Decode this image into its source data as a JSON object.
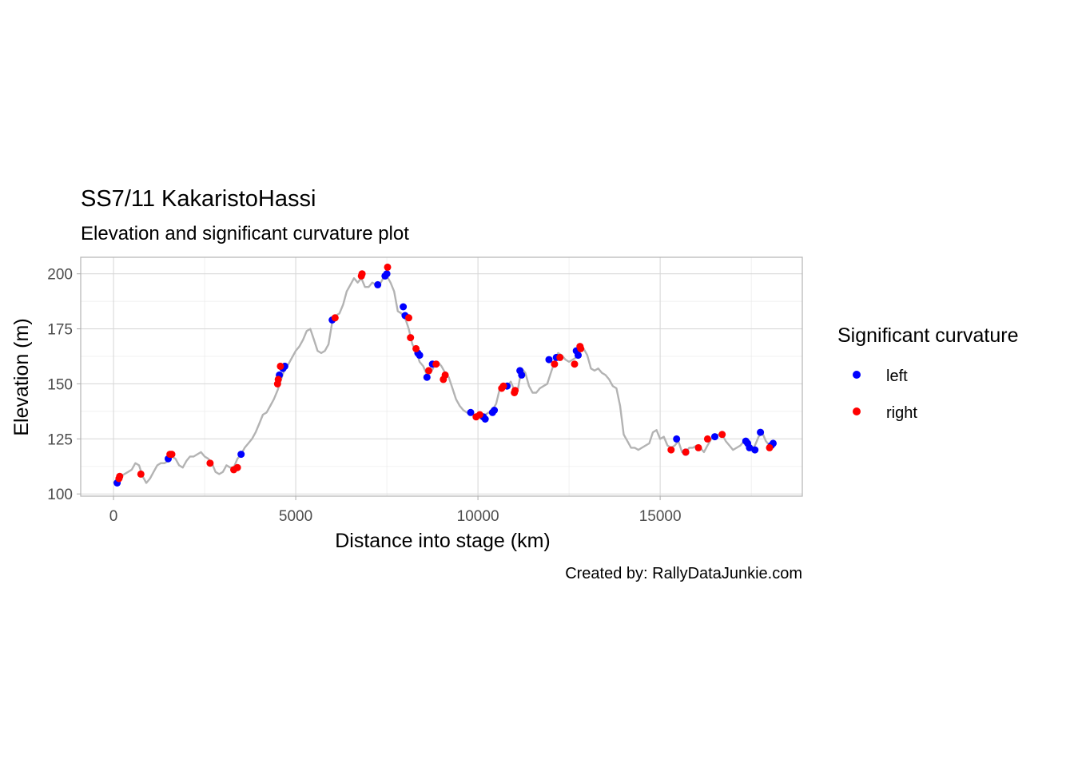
{
  "chart_data": {
    "type": "line",
    "title": "SS7/11 KakaristoHassi",
    "subtitle": "Elevation and significant curvature plot",
    "xlabel": "Distance into stage (km)",
    "ylabel": "Elevation (m)",
    "caption": "Created by: RallyDataJunkie.com",
    "xlim": [
      -900,
      18900
    ],
    "ylim": [
      99,
      207.5
    ],
    "x_ticks": [
      0,
      5000,
      10000,
      15000
    ],
    "y_ticks": [
      100,
      125,
      150,
      175,
      200
    ],
    "grid": true,
    "legend": {
      "title": "Significant curvature",
      "position": "right"
    },
    "elevation_profile": {
      "color": "#b3b3b3",
      "x": [
        0,
        100,
        200,
        300,
        400,
        500,
        600,
        700,
        800,
        900,
        1000,
        1100,
        1200,
        1300,
        1400,
        1500,
        1600,
        1700,
        1800,
        1900,
        2000,
        2100,
        2200,
        2300,
        2400,
        2500,
        2600,
        2700,
        2800,
        2900,
        3000,
        3100,
        3200,
        3300,
        3400,
        3500,
        3600,
        3700,
        3800,
        3900,
        4000,
        4100,
        4200,
        4300,
        4400,
        4500,
        4600,
        4700,
        4800,
        4900,
        5000,
        5100,
        5200,
        5300,
        5400,
        5500,
        5600,
        5700,
        5800,
        5900,
        6000,
        6100,
        6200,
        6300,
        6400,
        6500,
        6600,
        6700,
        6800,
        6900,
        7000,
        7100,
        7200,
        7300,
        7400,
        7500,
        7600,
        7700,
        7800,
        7900,
        8000,
        8100,
        8200,
        8300,
        8400,
        8500,
        8600,
        8700,
        8800,
        8900,
        9000,
        9100,
        9200,
        9300,
        9400,
        9500,
        9600,
        9700,
        9800,
        9900,
        10000,
        10100,
        10200,
        10300,
        10400,
        10500,
        10600,
        10700,
        10800,
        10900,
        11000,
        11100,
        11200,
        11300,
        11400,
        11500,
        11600,
        11700,
        11800,
        11900,
        12000,
        12100,
        12200,
        12300,
        12400,
        12500,
        12600,
        12700,
        12800,
        12900,
        13000,
        13100,
        13200,
        13300,
        13400,
        13500,
        13600,
        13700,
        13800,
        13900,
        14000,
        14100,
        14200,
        14300,
        14400,
        14500,
        14600,
        14700,
        14800,
        14900,
        15000,
        15100,
        15200,
        15300,
        15400,
        15500,
        15600,
        15700,
        15800,
        15900,
        16000,
        16100,
        16200,
        16300,
        16400,
        16500,
        16600,
        16700,
        16800,
        16900,
        17000,
        17100,
        17200,
        17300,
        17400,
        17500,
        17600,
        17700,
        17800,
        17900,
        18000,
        18100
      ],
      "y": [
        105,
        107,
        108,
        109,
        110,
        111,
        114,
        113,
        108,
        105,
        107,
        110,
        113,
        114,
        114,
        115,
        117,
        116,
        113,
        112,
        115,
        117,
        117,
        118,
        119,
        117,
        116,
        114,
        110,
        109,
        110,
        113,
        112,
        112,
        116,
        118,
        121,
        123,
        125,
        128,
        132,
        136,
        137,
        140,
        143,
        147,
        152,
        157,
        159,
        162,
        165,
        167,
        170,
        174,
        175,
        170,
        165,
        164,
        165,
        168,
        178,
        181,
        182,
        186,
        192,
        195,
        198,
        196,
        198,
        194,
        194,
        196,
        195,
        195,
        198,
        199,
        196,
        192,
        183,
        182,
        180,
        175,
        168,
        165,
        160,
        158,
        154,
        155,
        158,
        160,
        158,
        155,
        153,
        148,
        143,
        140,
        138,
        137,
        136,
        136,
        135,
        134,
        136,
        137,
        138,
        141,
        148,
        149,
        149,
        151,
        147,
        148,
        157,
        155,
        149,
        146,
        146,
        148,
        149,
        150,
        155,
        160,
        164,
        163,
        161,
        160,
        161,
        162,
        165,
        166,
        163,
        157,
        156,
        157,
        155,
        154,
        152,
        149,
        148,
        140,
        127,
        124,
        121,
        121,
        120,
        121,
        122,
        123,
        128,
        129,
        125,
        126,
        122,
        121,
        122,
        124,
        119,
        119,
        121,
        121,
        122,
        121,
        119,
        122,
        125,
        126,
        127,
        127,
        124,
        122,
        120,
        121,
        122,
        124,
        123,
        120,
        122,
        126,
        128,
        124,
        122,
        122
      ]
    },
    "series": [
      {
        "name": "left",
        "color": "#0000ff",
        "x": [
          100,
          1500,
          3500,
          4550,
          4650,
          4700,
          6000,
          7250,
          7450,
          7500,
          7950,
          8000,
          8350,
          8400,
          8600,
          8750,
          9800,
          10150,
          10200,
          10400,
          10450,
          10800,
          11150,
          11200,
          11950,
          12150,
          12700,
          12750,
          15450,
          15700,
          16500,
          17350,
          17400,
          17450,
          17600,
          17750,
          18050,
          18100
        ],
        "y": [
          105,
          116,
          118,
          154,
          157,
          158,
          179,
          195,
          199,
          200,
          185,
          181,
          164,
          163,
          153,
          159,
          137,
          135,
          134,
          137,
          138,
          149,
          156,
          154,
          161,
          162,
          165,
          163,
          125,
          119,
          126,
          124,
          123,
          121,
          120,
          128,
          122,
          123
        ]
      },
      {
        "name": "right",
        "color": "#ff0000",
        "x": [
          150,
          170,
          750,
          1550,
          1600,
          2650,
          3300,
          3400,
          4500,
          4520,
          4580,
          6080,
          6800,
          6820,
          7520,
          8100,
          8150,
          8300,
          8650,
          8850,
          9050,
          9100,
          9950,
          10050,
          10650,
          10700,
          11000,
          11020,
          12100,
          12250,
          12650,
          12800,
          12820,
          15300,
          15700,
          16050,
          16300,
          16700,
          18000
        ],
        "y": [
          107,
          108,
          109,
          118,
          118,
          114,
          111,
          112,
          150,
          152,
          158,
          180,
          199,
          200,
          203,
          180,
          171,
          166,
          156,
          159,
          152,
          154,
          135,
          136,
          148,
          149,
          146,
          147,
          159,
          162,
          159,
          167,
          166,
          120,
          119,
          121,
          125,
          127,
          121
        ]
      }
    ]
  }
}
